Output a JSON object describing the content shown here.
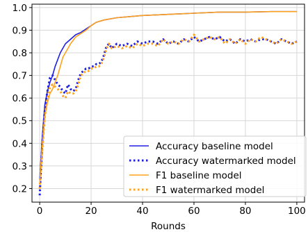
{
  "chart_data": {
    "type": "line",
    "title": "",
    "xlabel": "Rounds",
    "ylabel": "",
    "xlim": [
      -3,
      103
    ],
    "ylim": [
      0.14,
      1.015
    ],
    "xticks": [
      0,
      20,
      40,
      60,
      80,
      100
    ],
    "yticks": [
      0.2,
      0.3,
      0.4,
      0.5,
      0.6,
      0.7,
      0.8,
      0.9,
      1.0
    ],
    "xtick_labels": [
      "0",
      "20",
      "40",
      "60",
      "80",
      "100"
    ],
    "ytick_labels": [
      "0.2",
      "0.3",
      "0.4",
      "0.5",
      "0.6",
      "0.7",
      "0.8",
      "0.9",
      "1.0"
    ],
    "grid": true,
    "legend_position": "lower-right",
    "series": [
      {
        "name": "Accuracy baseline model",
        "color": "#1f1fe0",
        "style": "solid",
        "x": [
          0,
          1,
          2,
          3,
          4,
          5,
          6,
          7,
          8,
          9,
          10,
          12,
          14,
          16,
          18,
          20,
          22,
          25,
          30,
          35,
          40,
          50,
          60,
          70,
          80,
          90,
          100
        ],
        "y": [
          0.24,
          0.43,
          0.57,
          0.63,
          0.67,
          0.7,
          0.74,
          0.77,
          0.8,
          0.82,
          0.84,
          0.86,
          0.88,
          0.89,
          0.905,
          0.92,
          0.935,
          0.945,
          0.955,
          0.96,
          0.965,
          0.97,
          0.975,
          0.98,
          0.98,
          0.982,
          0.982
        ]
      },
      {
        "name": "Accuracy watermarked model",
        "color": "#1f1fe0",
        "style": "dotted",
        "x": [
          0,
          1,
          2,
          3,
          4,
          5,
          6,
          7,
          8,
          9,
          10,
          11,
          12,
          13,
          14,
          15,
          16,
          17,
          18,
          19,
          20,
          21,
          22,
          23,
          24,
          25,
          26,
          27,
          28,
          30,
          32,
          34,
          36,
          38,
          40,
          42,
          44,
          46,
          48,
          50,
          52,
          54,
          56,
          58,
          60,
          62,
          64,
          66,
          68,
          70,
          72,
          74,
          76,
          78,
          80,
          82,
          84,
          86,
          88,
          90,
          92,
          94,
          96,
          98,
          100
        ],
        "y": [
          0.17,
          0.4,
          0.55,
          0.63,
          0.69,
          0.7,
          0.68,
          0.66,
          0.65,
          0.63,
          0.62,
          0.66,
          0.64,
          0.63,
          0.64,
          0.68,
          0.71,
          0.72,
          0.73,
          0.73,
          0.74,
          0.74,
          0.75,
          0.75,
          0.76,
          0.79,
          0.83,
          0.84,
          0.82,
          0.84,
          0.83,
          0.84,
          0.83,
          0.85,
          0.84,
          0.85,
          0.85,
          0.84,
          0.86,
          0.84,
          0.85,
          0.84,
          0.86,
          0.85,
          0.87,
          0.85,
          0.86,
          0.87,
          0.86,
          0.87,
          0.85,
          0.86,
          0.84,
          0.86,
          0.85,
          0.86,
          0.85,
          0.86,
          0.86,
          0.85,
          0.84,
          0.86,
          0.85,
          0.84,
          0.85
        ]
      },
      {
        "name": "F1 baseline model",
        "color": "#ffa21c",
        "style": "solid",
        "x": [
          0,
          1,
          2,
          3,
          4,
          5,
          6,
          7,
          8,
          9,
          10,
          12,
          14,
          16,
          18,
          20,
          22,
          25,
          30,
          35,
          40,
          50,
          60,
          70,
          80,
          90,
          100
        ],
        "y": [
          0.22,
          0.39,
          0.52,
          0.58,
          0.62,
          0.64,
          0.67,
          0.7,
          0.74,
          0.78,
          0.8,
          0.84,
          0.87,
          0.885,
          0.9,
          0.92,
          0.935,
          0.945,
          0.955,
          0.96,
          0.965,
          0.97,
          0.975,
          0.98,
          0.98,
          0.982,
          0.982
        ]
      },
      {
        "name": "F1 watermarked model",
        "color": "#ffa21c",
        "style": "dotted",
        "x": [
          0,
          1,
          2,
          3,
          4,
          5,
          6,
          7,
          8,
          9,
          10,
          11,
          12,
          13,
          14,
          15,
          16,
          17,
          18,
          19,
          20,
          21,
          22,
          23,
          24,
          25,
          26,
          27,
          28,
          30,
          32,
          34,
          36,
          38,
          40,
          42,
          44,
          46,
          48,
          50,
          52,
          54,
          56,
          58,
          60,
          62,
          64,
          66,
          68,
          70,
          72,
          74,
          76,
          78,
          80,
          82,
          84,
          86,
          88,
          90,
          92,
          94,
          96,
          98,
          100
        ],
        "y": [
          0.2,
          0.37,
          0.52,
          0.6,
          0.65,
          0.66,
          0.65,
          0.64,
          0.63,
          0.61,
          0.6,
          0.63,
          0.62,
          0.62,
          0.63,
          0.66,
          0.7,
          0.71,
          0.72,
          0.72,
          0.73,
          0.73,
          0.74,
          0.74,
          0.75,
          0.78,
          0.82,
          0.84,
          0.82,
          0.83,
          0.82,
          0.83,
          0.82,
          0.84,
          0.83,
          0.84,
          0.84,
          0.83,
          0.86,
          0.84,
          0.85,
          0.84,
          0.86,
          0.85,
          0.88,
          0.85,
          0.86,
          0.87,
          0.86,
          0.87,
          0.84,
          0.86,
          0.84,
          0.86,
          0.84,
          0.86,
          0.85,
          0.87,
          0.86,
          0.85,
          0.84,
          0.86,
          0.85,
          0.84,
          0.85
        ]
      }
    ]
  }
}
